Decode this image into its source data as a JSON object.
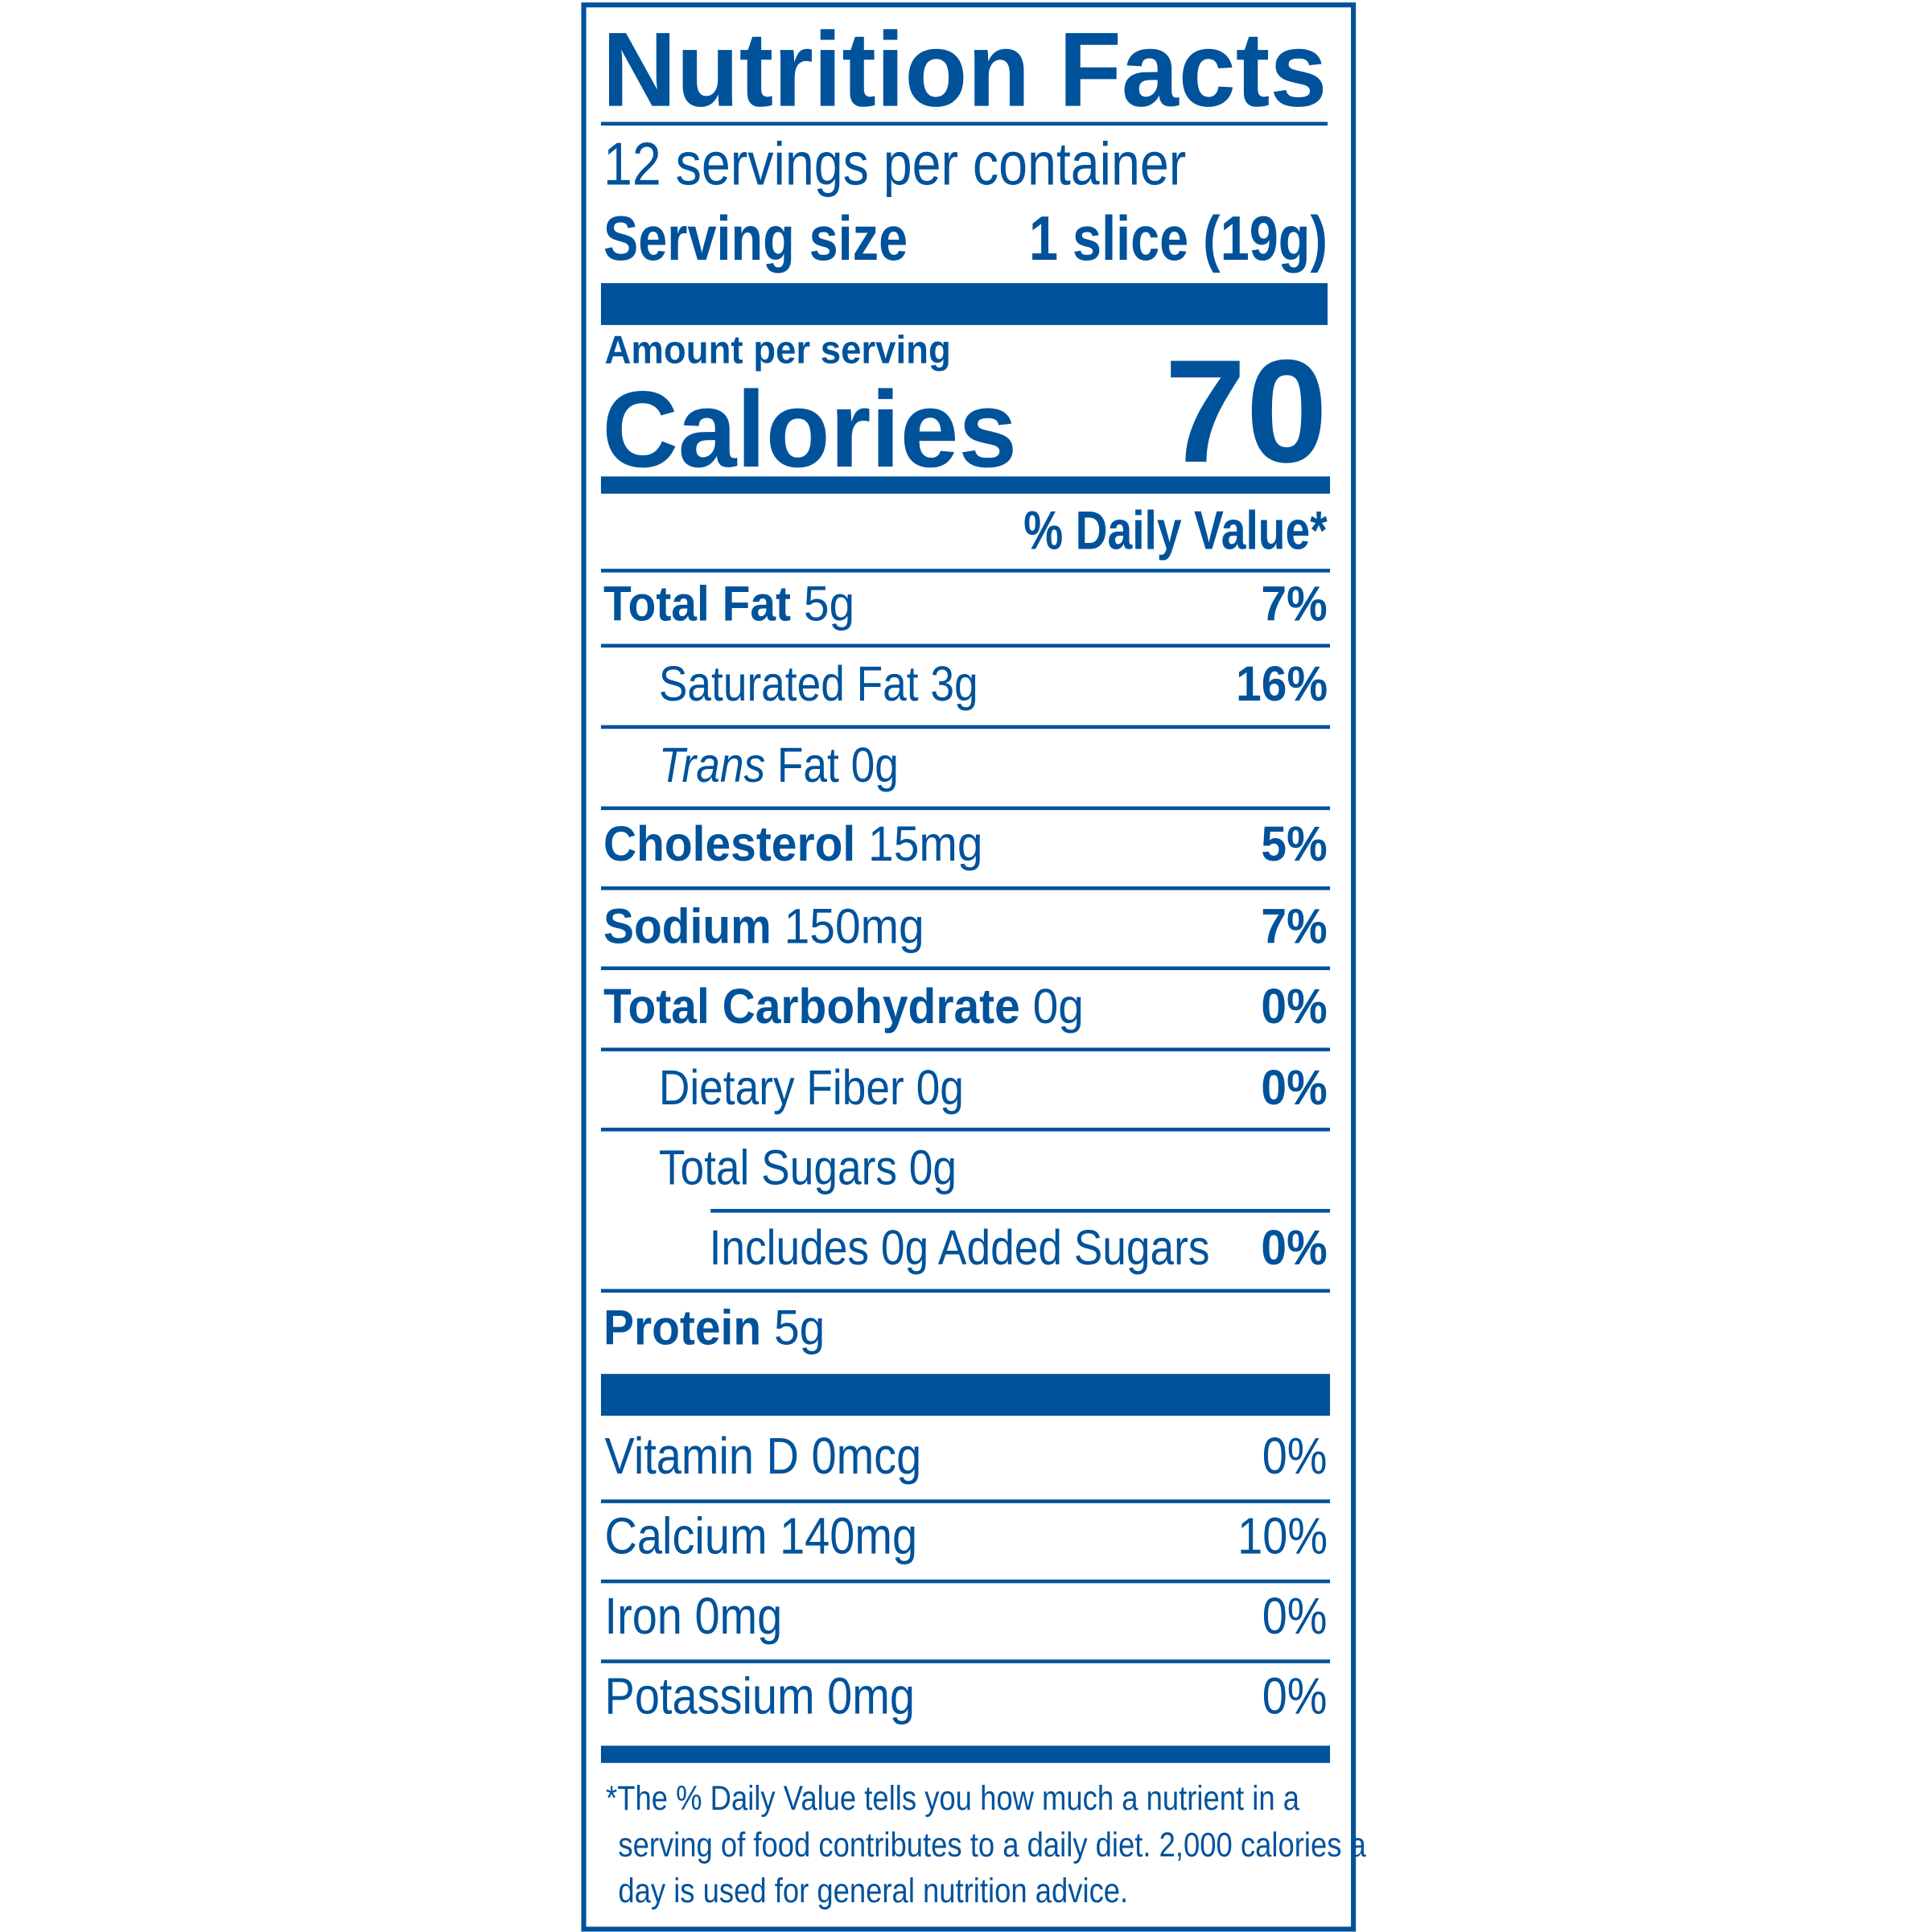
{
  "label": {
    "title": "Nutrition Facts",
    "servings_per_container": "12 servings per container",
    "serving_size_label": "Serving size",
    "serving_size_value": "1 slice (19g)",
    "amount_per_serving": "Amount per serving",
    "calories_label": "Calories",
    "calories_value": "70",
    "daily_value_header": "% Daily Value*",
    "nutrients": [
      {
        "name": "Total Fat",
        "amount": "5g",
        "dv": "7%",
        "bold": true,
        "indent": 0
      },
      {
        "name": "Saturated Fat",
        "amount": "3g",
        "dv": "16%",
        "bold": false,
        "indent": 1
      },
      {
        "name_italic": "Trans",
        "name": "Fat",
        "amount": "0g",
        "dv": "",
        "bold": false,
        "indent": 1
      },
      {
        "name": "Cholesterol",
        "amount": "15mg",
        "dv": "5%",
        "bold": true,
        "indent": 0
      },
      {
        "name": "Sodium",
        "amount": "150mg",
        "dv": "7%",
        "bold": true,
        "indent": 0
      },
      {
        "name": "Total Carbohydrate",
        "amount": "0g",
        "dv": "0%",
        "bold": true,
        "indent": 0
      },
      {
        "name": "Dietary Fiber",
        "amount": "0g",
        "dv": "0%",
        "bold": false,
        "indent": 1
      },
      {
        "name": "Total Sugars",
        "amount": "0g",
        "dv": "",
        "bold": false,
        "indent": 1
      },
      {
        "name": "Includes 0g Added Sugars",
        "amount": "",
        "dv": "0%",
        "bold": false,
        "indent": 2
      },
      {
        "name": "Protein",
        "amount": "5g",
        "dv": "",
        "bold": true,
        "indent": 0
      }
    ],
    "vitamins": [
      {
        "name": "Vitamin D",
        "amount": "0mcg",
        "dv": "0%"
      },
      {
        "name": "Calcium",
        "amount": "140mg",
        "dv": "10%"
      },
      {
        "name": "Iron",
        "amount": "0mg",
        "dv": "0%"
      },
      {
        "name": "Potassium",
        "amount": "0mg",
        "dv": "0%"
      }
    ],
    "footnote": [
      "*The % Daily Value tells you how much a nutrient in a",
      "serving of food contributes to a daily diet. 2,000 calories a",
      "day is used for general nutrition advice."
    ],
    "color": "#00529b"
  }
}
